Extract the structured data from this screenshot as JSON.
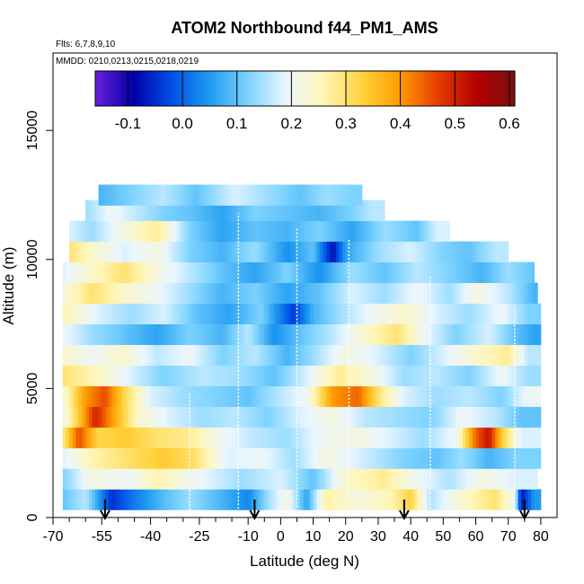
{
  "chart_data": {
    "type": "heatmap",
    "title": "ATOM2 Northbound f44_PM1_AMS",
    "flights_label": "Flts: 6,7,8,9,10",
    "mmdd_label": "MMDD: 0210,0213,0215,0218,0219",
    "xlabel": "Latitude (deg N)",
    "ylabel": "Altitude (m)",
    "xlim": [
      -70,
      85
    ],
    "ylim": [
      0,
      18000
    ],
    "x_ticks": [
      -70,
      -55,
      -40,
      -25,
      -10,
      0,
      10,
      20,
      30,
      40,
      50,
      60,
      70,
      80
    ],
    "x_minor_ticks": [
      -65,
      -60,
      -50,
      -45,
      -35,
      -30,
      -20,
      -15,
      -5,
      5,
      15,
      25,
      35,
      45,
      55,
      65,
      75
    ],
    "y_ticks": [
      0,
      5000,
      10000,
      15000
    ],
    "colorbar": {
      "min": -0.16,
      "max": 0.61,
      "ticks": [
        -0.1,
        0.0,
        0.1,
        0.2,
        0.3,
        0.4,
        0.5,
        0.6
      ],
      "tick_labels": [
        "-0.1",
        "0.0",
        "0.1",
        "0.2",
        "0.3",
        "0.4",
        "0.5",
        "0.6"
      ],
      "stops": [
        "#6a1fdc",
        "#0000a8",
        "#0050e6",
        "#1e9bf0",
        "#7dd3ff",
        "#eaf6ff",
        "#fff6b4",
        "#ffd23c",
        "#ff9a00",
        "#e63c00",
        "#b40000",
        "#7a1010"
      ]
    },
    "layers": [
      {
        "alt": 700,
        "segments": [
          [
            -67,
            0.1
          ],
          [
            -60,
            0.16
          ],
          [
            -52,
            -0.05
          ],
          [
            -45,
            0.02
          ],
          [
            -36,
            0.09
          ],
          [
            -28,
            0.14
          ],
          [
            -18,
            0.08
          ],
          [
            -10,
            0.03
          ],
          [
            -4,
            0.14
          ],
          [
            2,
            0.22
          ],
          [
            8,
            0.06
          ],
          [
            14,
            0.27
          ],
          [
            24,
            0.22
          ],
          [
            34,
            0.26
          ],
          [
            40,
            0.33
          ],
          [
            46,
            0.15
          ],
          [
            56,
            0.24
          ],
          [
            66,
            0.3
          ],
          [
            72,
            0.2
          ],
          [
            74,
            -0.08
          ],
          [
            78,
            0.05
          ]
        ]
      },
      {
        "alt": 1500,
        "segments": [
          [
            -67,
            0.12
          ],
          [
            -58,
            0.22
          ],
          [
            -46,
            0.2
          ],
          [
            -38,
            0.26
          ],
          [
            -26,
            0.2
          ],
          [
            -12,
            0.14
          ],
          [
            0,
            0.18
          ],
          [
            10,
            0.1
          ],
          [
            20,
            0.24
          ],
          [
            32,
            0.28
          ],
          [
            42,
            0.2
          ],
          [
            52,
            0.15
          ],
          [
            62,
            0.22
          ],
          [
            72,
            0.18
          ]
        ]
      },
      {
        "alt": 2300,
        "segments": [
          [
            -67,
            0.18
          ],
          [
            -58,
            0.26
          ],
          [
            -48,
            0.3
          ],
          [
            -36,
            0.34
          ],
          [
            -26,
            0.3
          ],
          [
            -16,
            0.18
          ],
          [
            -6,
            0.2
          ],
          [
            4,
            0.14
          ],
          [
            14,
            0.22
          ],
          [
            26,
            0.17
          ],
          [
            38,
            0.12
          ],
          [
            48,
            0.1
          ],
          [
            56,
            0.14
          ],
          [
            64,
            0.08
          ],
          [
            72,
            0.12
          ]
        ]
      },
      {
        "alt": 3100,
        "segments": [
          [
            -67,
            0.28
          ],
          [
            -62,
            0.46
          ],
          [
            -56,
            0.32
          ],
          [
            -48,
            0.34
          ],
          [
            -38,
            0.3
          ],
          [
            -28,
            0.28
          ],
          [
            -18,
            0.2
          ],
          [
            -8,
            0.16
          ],
          [
            2,
            0.14
          ],
          [
            12,
            0.2
          ],
          [
            24,
            0.22
          ],
          [
            34,
            0.18
          ],
          [
            44,
            0.14
          ],
          [
            54,
            0.2
          ],
          [
            60,
            0.44
          ],
          [
            64,
            0.52
          ],
          [
            68,
            0.34
          ],
          [
            74,
            0.18
          ]
        ]
      },
      {
        "alt": 3900,
        "segments": [
          [
            -67,
            0.2
          ],
          [
            -62,
            0.34
          ],
          [
            -57,
            0.5
          ],
          [
            -52,
            0.4
          ],
          [
            -44,
            0.24
          ],
          [
            -34,
            0.18
          ],
          [
            -24,
            0.14
          ],
          [
            -14,
            0.16
          ],
          [
            -4,
            0.12
          ],
          [
            6,
            0.18
          ],
          [
            16,
            0.22
          ],
          [
            26,
            0.16
          ],
          [
            36,
            0.14
          ],
          [
            46,
            0.12
          ],
          [
            56,
            0.2
          ],
          [
            66,
            0.16
          ],
          [
            74,
            0.1
          ]
        ]
      },
      {
        "alt": 4700,
        "segments": [
          [
            -67,
            0.22
          ],
          [
            -60,
            0.4
          ],
          [
            -54,
            0.46
          ],
          [
            -48,
            0.32
          ],
          [
            -40,
            0.18
          ],
          [
            -30,
            0.14
          ],
          [
            -20,
            0.12
          ],
          [
            -10,
            0.1
          ],
          [
            0,
            0.16
          ],
          [
            8,
            0.2
          ],
          [
            16,
            0.4
          ],
          [
            24,
            0.44
          ],
          [
            30,
            0.3
          ],
          [
            38,
            0.18
          ],
          [
            48,
            0.14
          ],
          [
            58,
            0.16
          ],
          [
            68,
            0.12
          ],
          [
            76,
            0.2
          ]
        ]
      },
      {
        "alt": 5500,
        "segments": [
          [
            -67,
            0.3
          ],
          [
            -58,
            0.26
          ],
          [
            -46,
            0.18
          ],
          [
            -36,
            0.12
          ],
          [
            -24,
            0.16
          ],
          [
            -12,
            0.14
          ],
          [
            -2,
            0.1
          ],
          [
            8,
            0.18
          ],
          [
            18,
            0.28
          ],
          [
            28,
            0.22
          ],
          [
            38,
            0.14
          ],
          [
            48,
            0.16
          ],
          [
            58,
            0.12
          ],
          [
            68,
            0.2
          ],
          [
            76,
            0.14
          ]
        ]
      },
      {
        "alt": 6300,
        "segments": [
          [
            -67,
            0.24
          ],
          [
            -58,
            0.2
          ],
          [
            -48,
            0.24
          ],
          [
            -38,
            0.16
          ],
          [
            -28,
            0.2
          ],
          [
            -18,
            0.12
          ],
          [
            -8,
            0.16
          ],
          [
            2,
            0.08
          ],
          [
            10,
            0.14
          ],
          [
            20,
            0.22
          ],
          [
            30,
            0.18
          ],
          [
            40,
            0.12
          ],
          [
            50,
            0.18
          ],
          [
            60,
            0.24
          ],
          [
            70,
            0.28
          ],
          [
            76,
            0.16
          ]
        ]
      },
      {
        "alt": 7100,
        "segments": [
          [
            -67,
            0.2
          ],
          [
            -58,
            0.14
          ],
          [
            -48,
            0.1
          ],
          [
            -38,
            0.06
          ],
          [
            -28,
            0.12
          ],
          [
            -18,
            0.08
          ],
          [
            -10,
            0.16
          ],
          [
            -2,
            0.04
          ],
          [
            6,
            0.1
          ],
          [
            16,
            0.16
          ],
          [
            26,
            0.24
          ],
          [
            36,
            0.3
          ],
          [
            44,
            0.2
          ],
          [
            54,
            0.12
          ],
          [
            64,
            0.18
          ],
          [
            72,
            0.1
          ],
          [
            78,
            0.06
          ]
        ]
      },
      {
        "alt": 7900,
        "segments": [
          [
            -67,
            0.26
          ],
          [
            -56,
            0.18
          ],
          [
            -46,
            0.14
          ],
          [
            -36,
            0.18
          ],
          [
            -26,
            0.1
          ],
          [
            -16,
            0.06
          ],
          [
            -6,
            0.12
          ],
          [
            4,
            -0.04
          ],
          [
            10,
            0.08
          ],
          [
            18,
            0.14
          ],
          [
            28,
            0.2
          ],
          [
            38,
            0.24
          ],
          [
            48,
            0.18
          ],
          [
            58,
            0.14
          ],
          [
            68,
            0.2
          ],
          [
            76,
            0.12
          ]
        ]
      },
      {
        "alt": 8700,
        "segments": [
          [
            -67,
            0.22
          ],
          [
            -58,
            0.3
          ],
          [
            -48,
            0.24
          ],
          [
            -38,
            0.2
          ],
          [
            -28,
            0.14
          ],
          [
            -18,
            0.08
          ],
          [
            -8,
            0.12
          ],
          [
            2,
            0.06
          ],
          [
            12,
            0.1
          ],
          [
            22,
            0.18
          ],
          [
            32,
            0.14
          ],
          [
            42,
            0.2
          ],
          [
            52,
            0.14
          ],
          [
            60,
            0.22
          ],
          [
            70,
            0.16
          ],
          [
            78,
            0.08
          ]
        ]
      },
      {
        "alt": 9500,
        "segments": [
          [
            -67,
            0.18
          ],
          [
            -58,
            0.24
          ],
          [
            -48,
            0.3
          ],
          [
            -38,
            0.22
          ],
          [
            -28,
            0.16
          ],
          [
            -18,
            0.1
          ],
          [
            -8,
            0.06
          ],
          [
            2,
            0.12
          ],
          [
            12,
            0.04
          ],
          [
            22,
            0.14
          ],
          [
            32,
            0.1
          ],
          [
            42,
            0.16
          ],
          [
            52,
            0.12
          ],
          [
            62,
            0.08
          ],
          [
            70,
            0.14
          ],
          [
            78,
            0.1
          ]
        ]
      },
      {
        "alt": 10300,
        "segments": [
          [
            -65,
            0.3
          ],
          [
            -58,
            0.24
          ],
          [
            -48,
            0.18
          ],
          [
            -38,
            0.22
          ],
          [
            -28,
            0.12
          ],
          [
            -18,
            0.08
          ],
          [
            -8,
            0.14
          ],
          [
            2,
            0.04
          ],
          [
            10,
            0.1
          ],
          [
            16,
            -0.08
          ],
          [
            20,
            0.06
          ],
          [
            30,
            0.14
          ],
          [
            40,
            0.18
          ],
          [
            50,
            0.12
          ],
          [
            58,
            0.1
          ],
          [
            66,
            0.16
          ]
        ]
      },
      {
        "alt": 11100,
        "segments": [
          [
            -65,
            0.18
          ],
          [
            -58,
            0.14
          ],
          [
            -48,
            0.22
          ],
          [
            -38,
            0.28
          ],
          [
            -28,
            0.12
          ],
          [
            -18,
            0.06
          ],
          [
            -8,
            0.1
          ],
          [
            2,
            0.08
          ],
          [
            12,
            0.12
          ],
          [
            22,
            0.06
          ],
          [
            32,
            0.14
          ],
          [
            42,
            0.1
          ],
          [
            48,
            0.18
          ]
        ]
      },
      {
        "alt": 11900,
        "segments": [
          [
            -60,
            0.14
          ],
          [
            -52,
            0.2
          ],
          [
            -44,
            0.16
          ],
          [
            -36,
            0.12
          ],
          [
            -28,
            0.1
          ],
          [
            -18,
            0.06
          ],
          [
            -8,
            0.12
          ],
          [
            2,
            0.1
          ],
          [
            12,
            0.08
          ],
          [
            22,
            0.12
          ],
          [
            28,
            0.16
          ]
        ]
      },
      {
        "alt": 12500,
        "segments": [
          [
            -56,
            0.08
          ],
          [
            -46,
            0.12
          ],
          [
            -36,
            0.16
          ],
          [
            -26,
            0.1
          ],
          [
            -14,
            0.18
          ],
          [
            -4,
            0.14
          ],
          [
            6,
            0.1
          ],
          [
            14,
            0.14
          ],
          [
            22,
            0.12
          ]
        ]
      }
    ],
    "layer_thickness": 800,
    "layer_xmax": [
      80,
      79,
      80,
      80,
      80,
      80,
      80,
      80,
      80,
      80,
      79,
      78,
      70,
      52,
      32,
      25
    ],
    "flight_tracks": [
      {
        "lat": -28,
        "alt_min": 300,
        "alt_max": 4800
      },
      {
        "lat": -13,
        "alt_min": 200,
        "alt_max": 11800
      },
      {
        "lat": 5,
        "alt_min": 400,
        "alt_max": 11200
      },
      {
        "lat": 21,
        "alt_min": 800,
        "alt_max": 10800
      },
      {
        "lat": 46,
        "alt_min": 200,
        "alt_max": 9400
      },
      {
        "lat": 72,
        "alt_min": 300,
        "alt_max": 8200
      }
    ],
    "arrows": [
      -54,
      -8,
      38,
      75
    ]
  }
}
